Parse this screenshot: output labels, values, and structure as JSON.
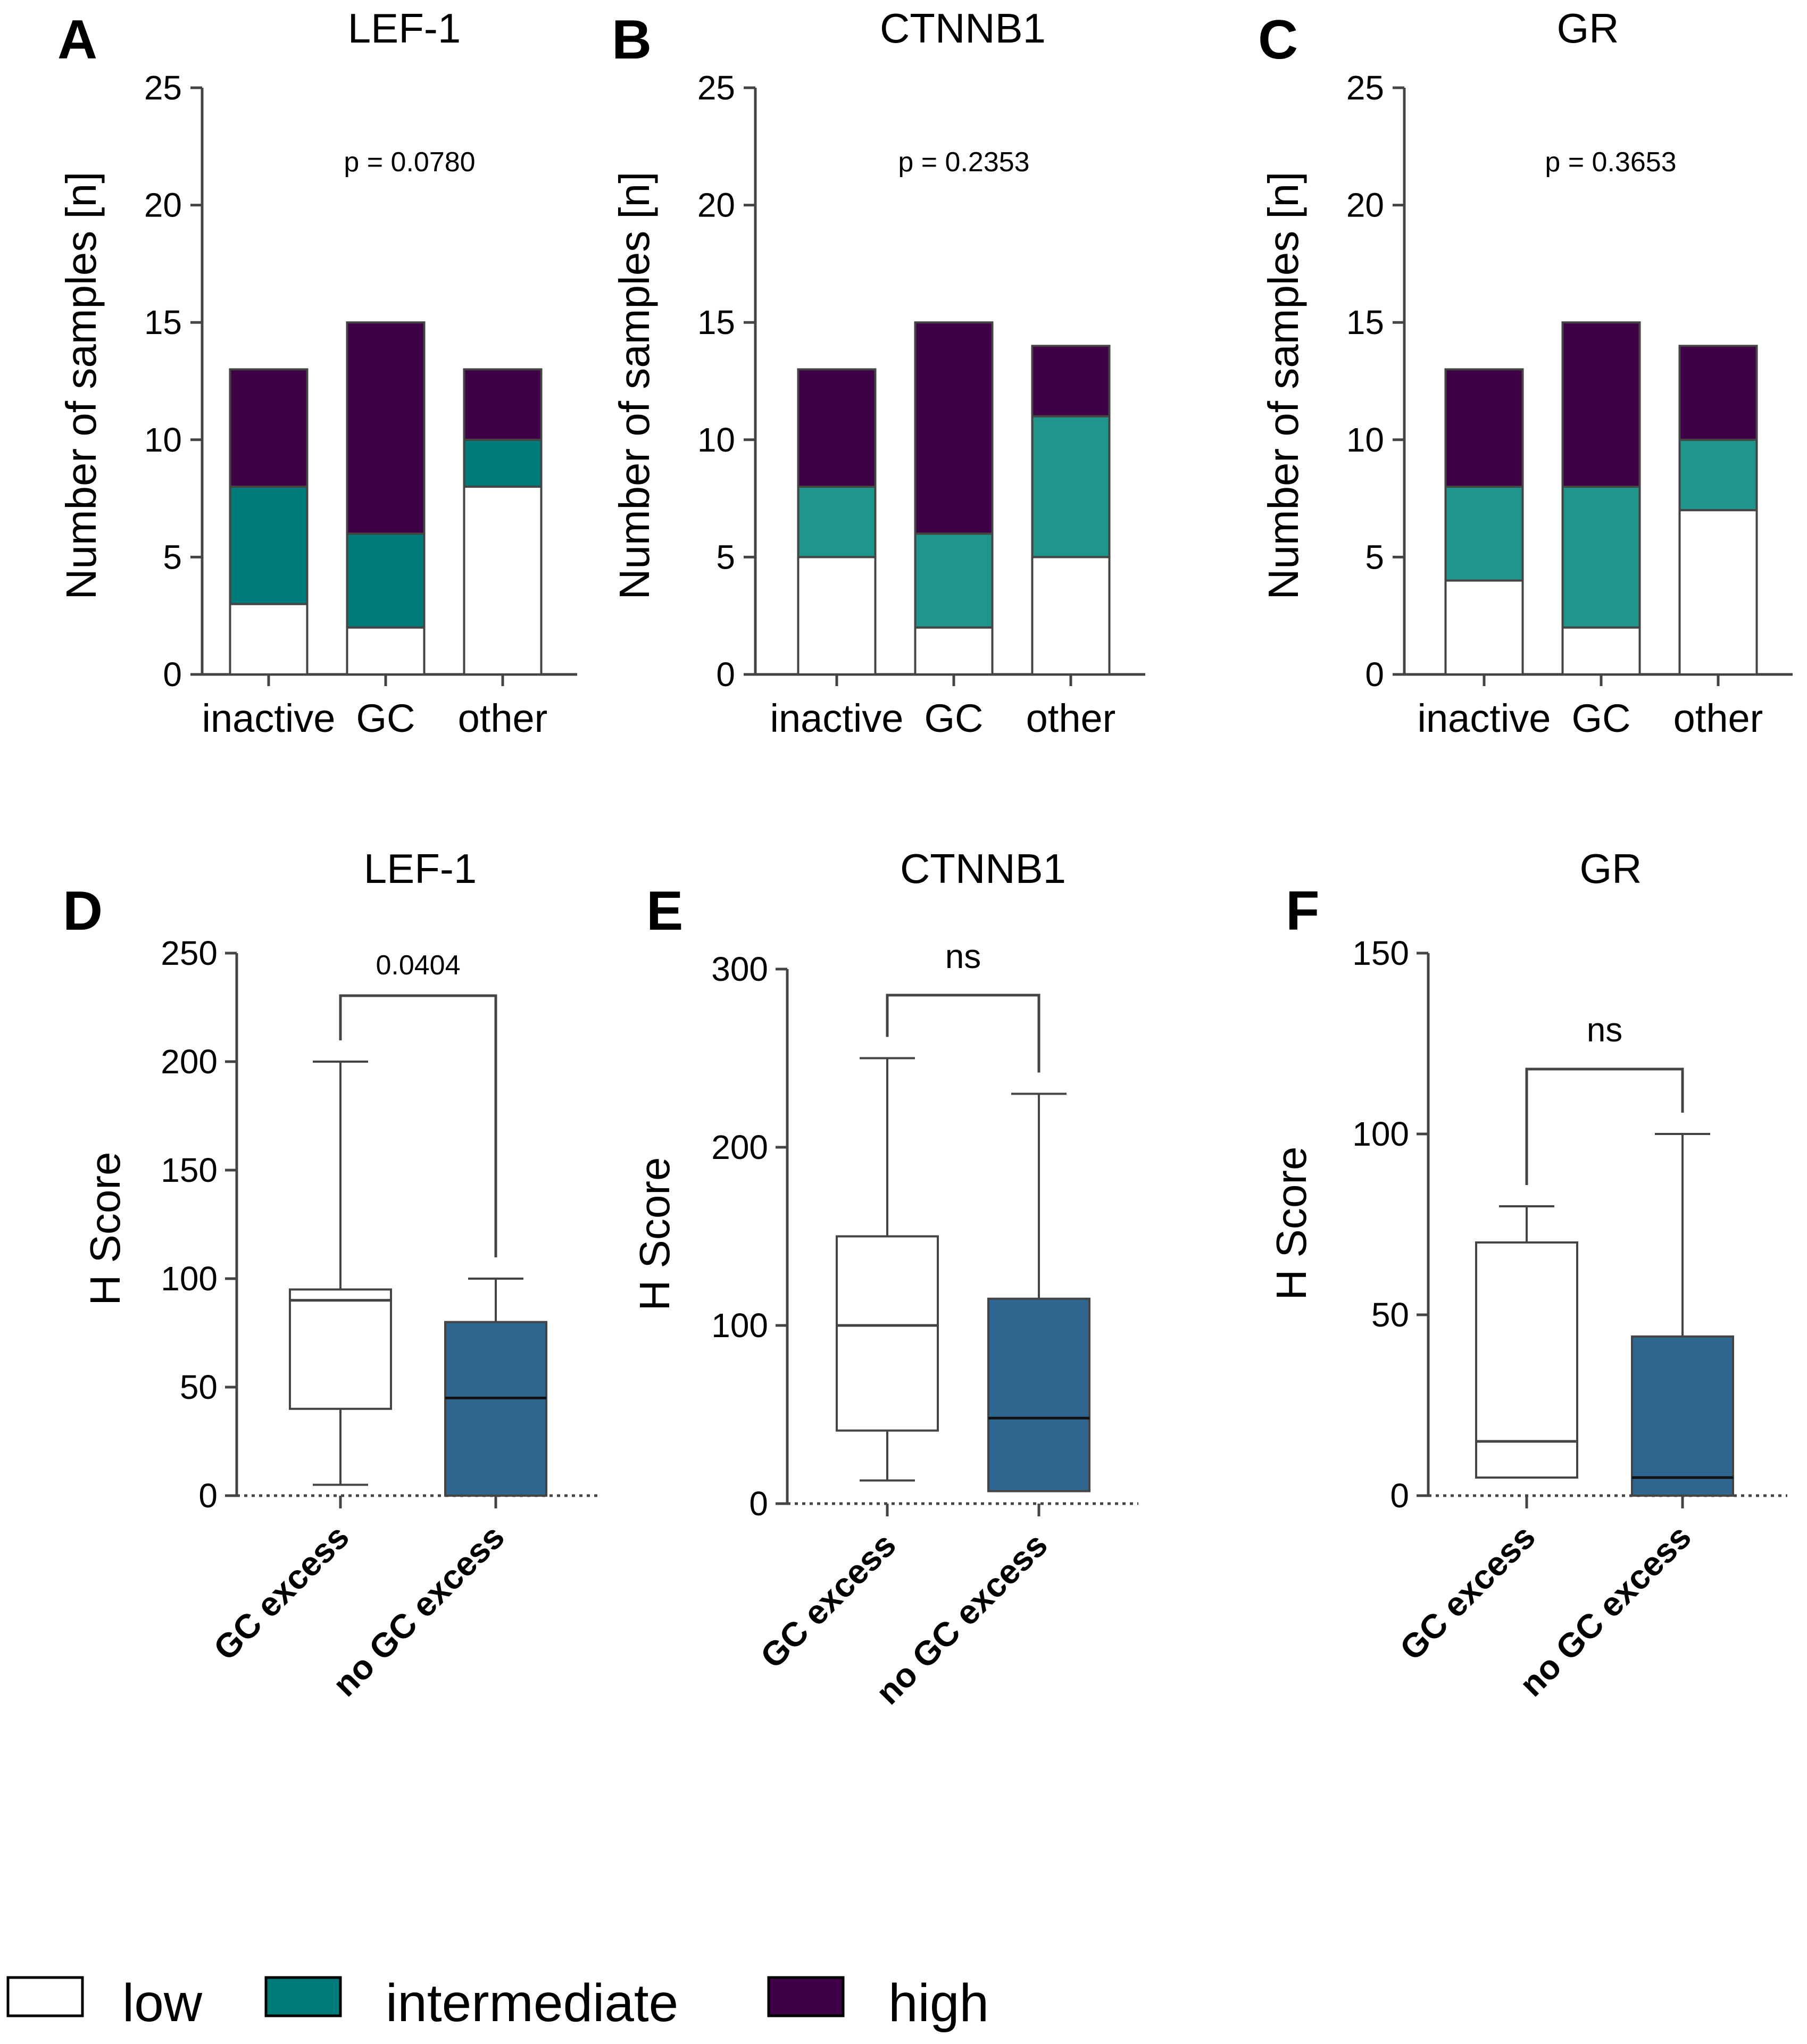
{
  "colors": {
    "low": "#ffffff",
    "intermediate_dark": "#007b7b",
    "intermediate_light": "#1f958b",
    "high": "#3f0046",
    "no_gc_box": "#2f6690",
    "line": "#444444"
  },
  "legend": {
    "items": [
      {
        "key": "low",
        "label": "low"
      },
      {
        "key": "intermediate",
        "label": "intermediate"
      },
      {
        "key": "high",
        "label": "high"
      }
    ]
  },
  "chart_data": [
    {
      "panel": "A",
      "type": "bar",
      "stacked": true,
      "title": "LEF-1",
      "ylabel": "Number of samples [n]",
      "ylim": [
        0,
        25
      ],
      "yticks": [
        "0",
        "5",
        "10",
        "15",
        "20",
        "25"
      ],
      "categories": [
        "inactive",
        "GC",
        "other"
      ],
      "series": [
        {
          "name": "low",
          "values": [
            3,
            2,
            8
          ]
        },
        {
          "name": "intermediate",
          "values": [
            5,
            4,
            2
          ]
        },
        {
          "name": "high",
          "values": [
            5,
            9,
            3
          ]
        }
      ],
      "annotation": "p = 0.0780"
    },
    {
      "panel": "B",
      "type": "bar",
      "stacked": true,
      "title": "CTNNB1",
      "ylabel": "Number of samples [n]",
      "ylim": [
        0,
        25
      ],
      "yticks": [
        "0",
        "5",
        "10",
        "15",
        "20",
        "25"
      ],
      "categories": [
        "inactive",
        "GC",
        "other"
      ],
      "series": [
        {
          "name": "low",
          "values": [
            5,
            2,
            5
          ]
        },
        {
          "name": "intermediate",
          "values": [
            3,
            4,
            6
          ]
        },
        {
          "name": "high",
          "values": [
            5,
            9,
            3
          ]
        }
      ],
      "annotation": "p = 0.2353"
    },
    {
      "panel": "C",
      "type": "bar",
      "stacked": true,
      "title": "GR",
      "ylabel": "Number of samples [n]",
      "ylim": [
        0,
        25
      ],
      "yticks": [
        "0",
        "5",
        "10",
        "15",
        "20",
        "25"
      ],
      "categories": [
        "inactive",
        "GC",
        "other"
      ],
      "series": [
        {
          "name": "low",
          "values": [
            4,
            2,
            7
          ]
        },
        {
          "name": "intermediate",
          "values": [
            4,
            6,
            3
          ]
        },
        {
          "name": "high",
          "values": [
            5,
            7,
            4
          ]
        }
      ],
      "annotation": "p = 0.3653"
    },
    {
      "panel": "D",
      "type": "box",
      "title": "LEF-1",
      "ylabel": "H Score",
      "ylim": [
        0,
        250
      ],
      "yticks": [
        "0",
        "50",
        "100",
        "150",
        "200",
        "250"
      ],
      "categories": [
        "GC excess",
        "no GC excess"
      ],
      "boxes": [
        {
          "min": 5,
          "q1": 40,
          "median": 90,
          "q3": 95,
          "max": 200
        },
        {
          "min": 0,
          "q1": 0,
          "median": 45,
          "q3": 80,
          "max": 100
        }
      ],
      "comparison": "0.0404"
    },
    {
      "panel": "E",
      "type": "box",
      "title": "CTNNB1",
      "ylabel": "H Score",
      "ylim": [
        0,
        300
      ],
      "yticks": [
        "0",
        "100",
        "200",
        "300"
      ],
      "categories": [
        "GC excess",
        "no GC excess"
      ],
      "boxes": [
        {
          "min": 13,
          "q1": 41,
          "median": 100,
          "q3": 150,
          "max": 250
        },
        {
          "min": 7,
          "q1": 7,
          "median": 48,
          "q3": 115,
          "max": 230
        }
      ],
      "comparison": "ns"
    },
    {
      "panel": "F",
      "type": "box",
      "title": "GR",
      "ylabel": "H Score",
      "ylim": [
        0,
        150
      ],
      "yticks": [
        "0",
        "50",
        "100",
        "150"
      ],
      "categories": [
        "GC excess",
        "no GC excess"
      ],
      "boxes": [
        {
          "min": 5,
          "q1": 5,
          "median": 15,
          "q3": 70,
          "max": 80
        },
        {
          "min": 0,
          "q1": 0,
          "median": 5,
          "q3": 44,
          "max": 100
        }
      ],
      "comparison": "ns"
    }
  ]
}
